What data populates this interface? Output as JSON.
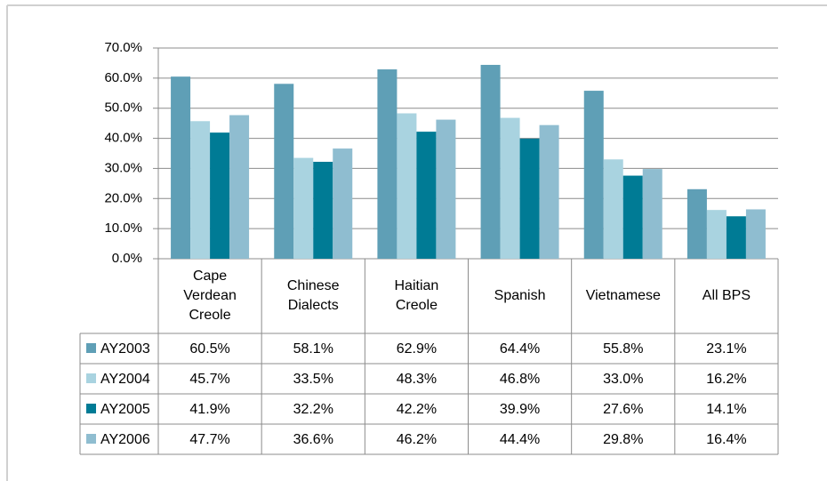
{
  "chart_data": {
    "type": "bar",
    "categories": [
      "Cape Verdean Creole",
      "Chinese Dialects",
      "Haitian Creole",
      "Spanish",
      "Vietnamese",
      "All BPS"
    ],
    "series": [
      {
        "name": "AY2003",
        "color": "#5f9fb6",
        "values": [
          60.5,
          58.1,
          62.9,
          64.4,
          55.8,
          23.1
        ],
        "value_labels": [
          "60.5%",
          "58.1%",
          "62.9%",
          "64.4%",
          "55.8%",
          "23.1%"
        ]
      },
      {
        "name": "AY2004",
        "color": "#a9d3e0",
        "values": [
          45.7,
          33.5,
          48.3,
          46.8,
          33.0,
          16.2
        ],
        "value_labels": [
          "45.7%",
          "33.5%",
          "48.3%",
          "46.8%",
          "33.0%",
          "16.2%"
        ]
      },
      {
        "name": "AY2005",
        "color": "#007b95",
        "values": [
          41.9,
          32.2,
          42.2,
          39.9,
          27.6,
          14.1
        ],
        "value_labels": [
          "41.9%",
          "32.2%",
          "42.2%",
          "39.9%",
          "27.6%",
          "14.1%"
        ]
      },
      {
        "name": "AY2006",
        "color": "#8fbdd0",
        "values": [
          47.7,
          36.6,
          46.2,
          44.4,
          29.8,
          16.4
        ],
        "value_labels": [
          "47.7%",
          "36.6%",
          "46.2%",
          "44.4%",
          "29.8%",
          "16.4%"
        ]
      }
    ],
    "ylim": [
      0,
      70
    ],
    "yticks": [
      {
        "value": 0,
        "label": "0.0%"
      },
      {
        "value": 10,
        "label": "10.0%"
      },
      {
        "value": 20,
        "label": "20.0%"
      },
      {
        "value": 30,
        "label": "30.0%"
      },
      {
        "value": 40,
        "label": "40.0%"
      },
      {
        "value": 50,
        "label": "50.0%"
      },
      {
        "value": 60,
        "label": "60.0%"
      },
      {
        "value": 70,
        "label": "70.0%"
      }
    ],
    "grid": true
  }
}
